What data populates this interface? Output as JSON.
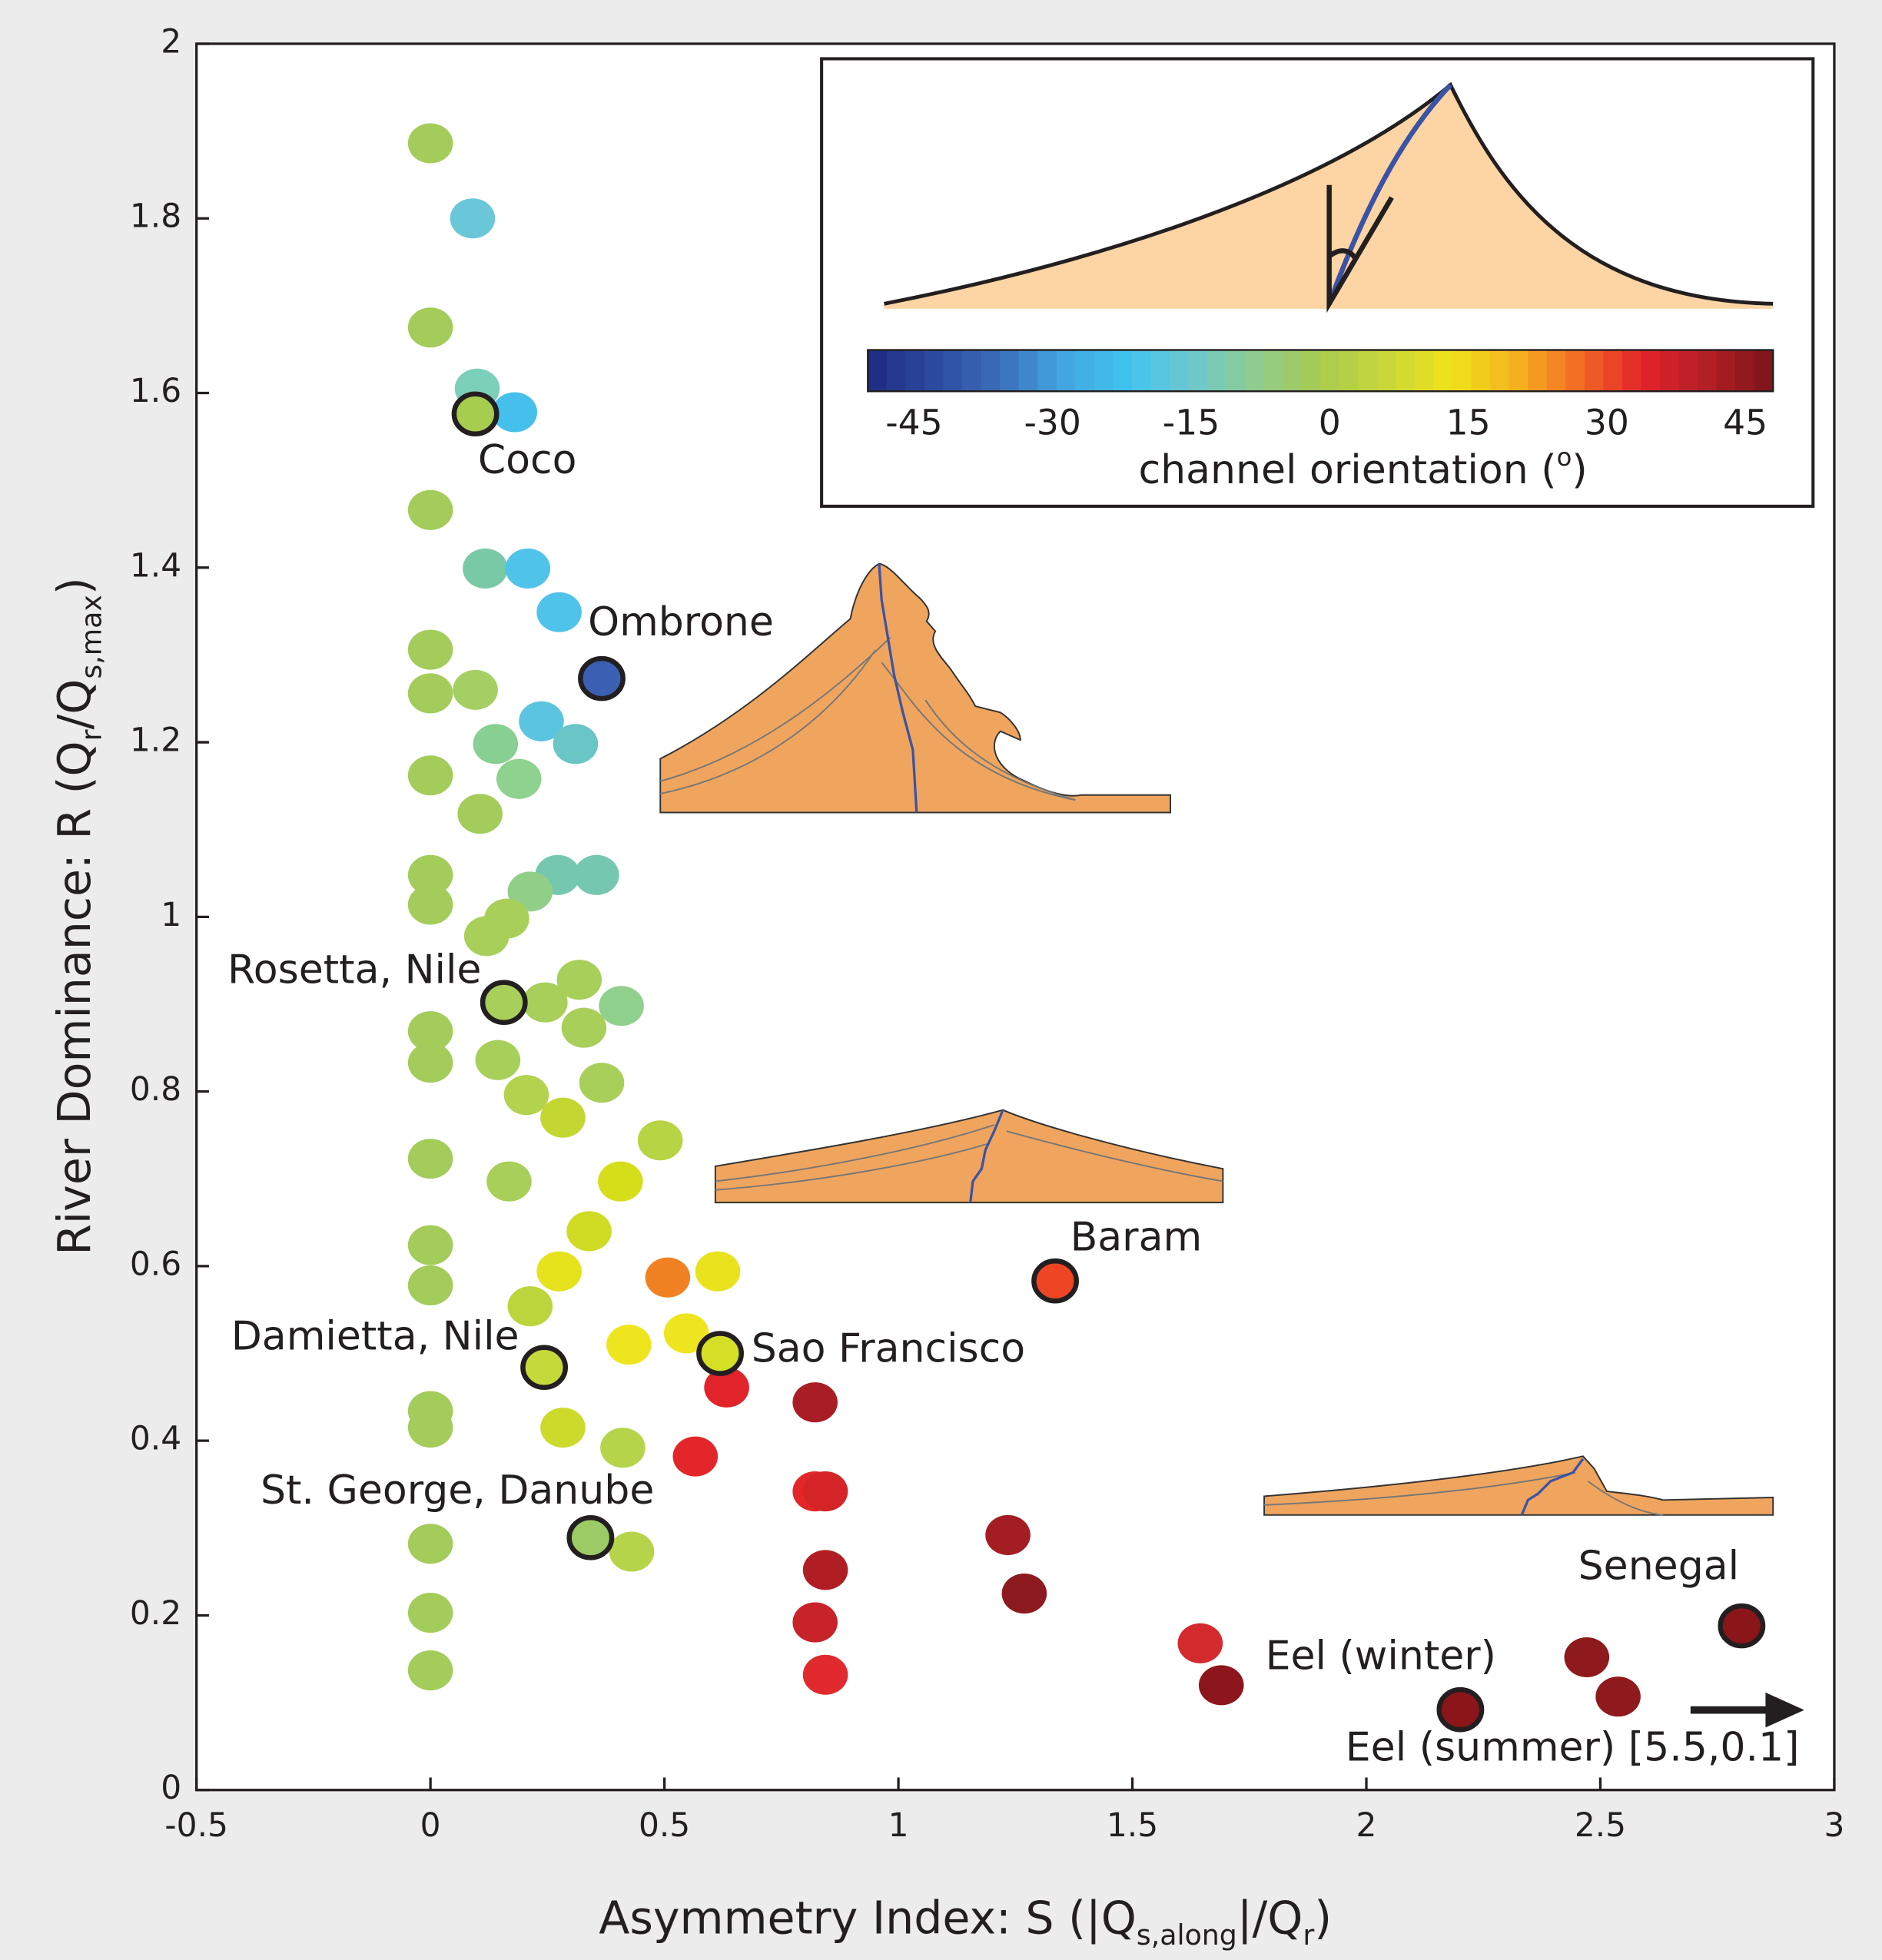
{
  "chart_data": {
    "type": "scatter",
    "xlabel_parts": [
      {
        "text": "Asymmetry Index: S (|Q"
      },
      {
        "text": "s,along",
        "sub": true
      },
      {
        "text": "|/Q"
      },
      {
        "text": "r",
        "sub": true
      },
      {
        "text": ")"
      }
    ],
    "ylabel_parts": [
      {
        "text": "River Dominance: R (Q"
      },
      {
        "text": "r",
        "sub": true
      },
      {
        "text": "/Q"
      },
      {
        "text": "s,max",
        "sub": true
      },
      {
        "text": ")"
      }
    ],
    "xlim": [
      -0.5,
      3
    ],
    "xticks": [
      -0.5,
      0,
      0.5,
      1,
      1.5,
      2,
      2.5,
      3
    ],
    "ylim": [
      0,
      2
    ],
    "yticks": [
      0,
      0.2,
      0.4,
      0.6,
      0.8,
      1,
      1.2,
      1.4,
      1.6,
      1.8,
      2
    ],
    "series": [
      {
        "x": [
          0,
          0.09,
          0,
          0.1,
          0.18,
          0,
          0.117,
          0.208,
          0.275,
          0,
          0,
          0.096,
          0.237,
          0.139,
          0.31,
          0,
          0.189,
          0.106,
          0,
          0.272,
          0.355,
          0.213,
          0,
          0.163,
          0.12,
          0.318,
          0.245,
          0.328,
          0.408,
          0,
          0,
          0.144,
          0.366,
          0.205,
          0.283,
          0.491,
          0,
          0.168,
          0.406,
          0.339,
          0,
          0,
          0.275,
          0.507,
          0.614,
          0.213,
          0.547,
          0.424,
          0.633,
          0.822,
          0,
          0,
          0.283,
          0.411,
          0.566,
          0.822,
          0.844,
          0.43,
          0,
          1.234,
          0.844,
          1.269,
          0,
          0.822,
          0,
          0.844,
          1.645,
          1.69,
          2.471,
          2.538
        ],
        "values": [
          1.886,
          1.8,
          1.675,
          1.605,
          1.578,
          1.466,
          1.399,
          1.399,
          1.349,
          1.306,
          1.256,
          1.26,
          1.224,
          1.198,
          1.198,
          1.162,
          1.158,
          1.118,
          1.048,
          1.048,
          1.048,
          1.029,
          1.014,
          0.998,
          0.978,
          0.928,
          0.902,
          0.873,
          0.898,
          0.869,
          0.833,
          0.836,
          0.81,
          0.796,
          0.77,
          0.744,
          0.723,
          0.697,
          0.697,
          0.64,
          0.624,
          0.578,
          0.594,
          0.587,
          0.594,
          0.554,
          0.523,
          0.51,
          0.461,
          0.444,
          0.434,
          0.415,
          0.415,
          0.392,
          0.382,
          0.342,
          0.342,
          0.273,
          0.282,
          0.292,
          0.252,
          0.225,
          0.203,
          0.192,
          0.137,
          0.132,
          0.168,
          0.12,
          0.152,
          0.107
        ],
        "colors": [
          "#a3cc5a",
          "#6ac6d9",
          "#a3cc5a",
          "#7ccfb8",
          "#45bfec",
          "#a3cc5a",
          "#7ac9a6",
          "#4fc3ea",
          "#4fc3ea",
          "#a3cc5a",
          "#a3cc5a",
          "#a5cf63",
          "#5bc4e0",
          "#88cf94",
          "#69c5c6",
          "#a3cc5a",
          "#8fd18e",
          "#a3cc5a",
          "#a3cc5a",
          "#76c7b0",
          "#76c7b0",
          "#91cf88",
          "#a3cc5a",
          "#a8cf5a",
          "#a8cf5a",
          "#a8cf5a",
          "#a8cf5a",
          "#a8cf5a",
          "#8fd08d",
          "#a3cc5a",
          "#a3cc5a",
          "#a8cf5a",
          "#a8cf5a",
          "#b3d24e",
          "#c4d632",
          "#b6d444",
          "#a3cc5a",
          "#a8cf5a",
          "#d6de1a",
          "#cfdc23",
          "#a3cc5a",
          "#a3cc5a",
          "#e6e21c",
          "#f08223",
          "#e8e31c",
          "#bdd53c",
          "#eee51e",
          "#eee51e",
          "#e0242a",
          "#a91d24",
          "#a3cc5a",
          "#a3cc5a",
          "#ccda2c",
          "#b5d44a",
          "#e32629",
          "#e32629",
          "#d52428",
          "#b5d44a",
          "#a3cc5a",
          "#a31d22",
          "#b01e24",
          "#8d1a1f",
          "#a3cc5a",
          "#c8232a",
          "#a3cc5a",
          "#e02a2e",
          "#d32a2d",
          "#8c161c",
          "#8e1a1e",
          "#8e1a1e"
        ]
      },
      {
        "names": [
          "Coco",
          "Ombrone",
          "Rosetta, Nile",
          "Damietta, Nile",
          "Sao Francisco",
          "St. George, Danube",
          "Baram",
          "Senegal",
          "Eel (winter)"
        ],
        "x": [
          0.096,
          0.366,
          0.157,
          0.243,
          0.619,
          0.342,
          1.335,
          2.802,
          2.201
        ],
        "values": [
          1.576,
          1.273,
          0.902,
          0.484,
          0.5,
          0.289,
          0.583,
          0.188,
          0.092
        ],
        "colors": [
          "#a6cd4e",
          "#3a5fb3",
          "#a8cf5a",
          "#c6d93b",
          "#d4df26",
          "#9ccb66",
          "#ee4525",
          "#8a161a",
          "#8a161a"
        ],
        "outline": "#231f20"
      }
    ],
    "annotations": [
      "Eel (summer) [5.5,0.1]"
    ],
    "colorbar": {
      "label_parts": [
        {
          "text": "channel orientation ("
        },
        {
          "text": "o",
          "sup": true
        },
        {
          "text": ")"
        }
      ],
      "lim": [
        -50,
        48
      ],
      "ticks": [
        -45,
        -30,
        -15,
        0,
        15,
        30,
        45
      ],
      "colors": [
        "#1e2a80",
        "#2b4a9f",
        "#3b6bb8",
        "#42a5e0",
        "#3fc3ef",
        "#6ec8cf",
        "#8fcc8e",
        "#a8cb4e",
        "#c8d63a",
        "#efe21a",
        "#f6b51f",
        "#f26a24",
        "#e2232a",
        "#b11f25",
        "#7a1419"
      ]
    }
  }
}
